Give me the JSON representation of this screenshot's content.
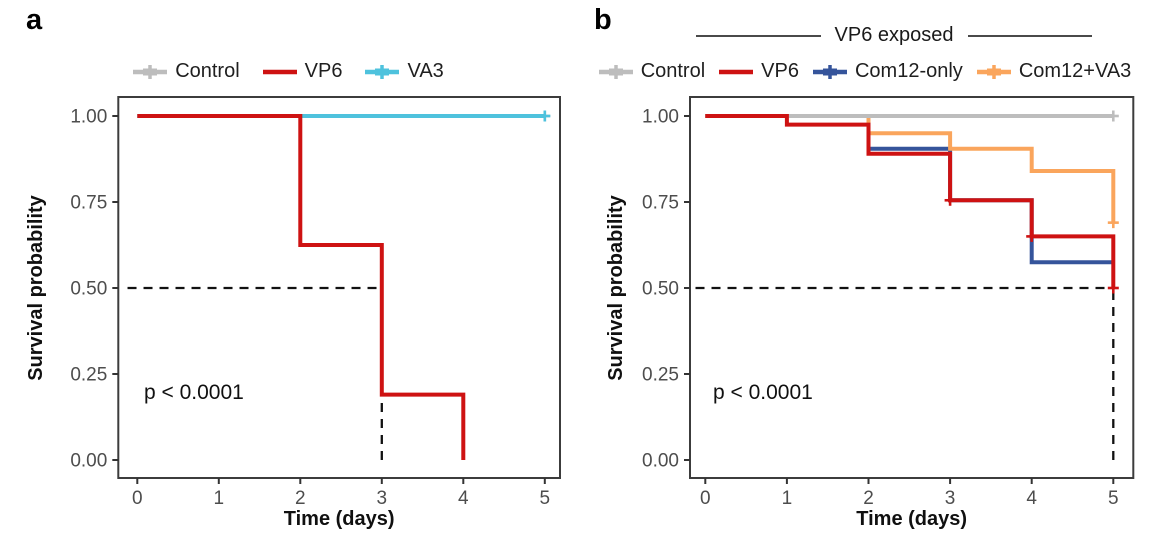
{
  "figure": {
    "background": "#ffffff",
    "panels": [
      {
        "label": "a",
        "header": null,
        "p_value": "p < 0.0001",
        "legend": [
          {
            "label": "Control",
            "color": "#BDBDBD",
            "censor_plus": true
          },
          {
            "label": "VP6",
            "color": "#CE1212",
            "censor_plus": false
          },
          {
            "label": "VA3",
            "color": "#4EC2DD",
            "censor_plus": true
          }
        ]
      },
      {
        "label": "b",
        "header": "VP6 exposed",
        "p_value": "p < 0.0001",
        "legend": [
          {
            "label": "Control",
            "color": "#BDBDBD",
            "censor_plus": true
          },
          {
            "label": "VP6",
            "color": "#CE1212",
            "censor_plus": false
          },
          {
            "label": "Com12-only",
            "color": "#35549B",
            "censor_plus": true
          },
          {
            "label": "Com12+VA3",
            "color": "#FAA55C",
            "censor_plus": true
          }
        ]
      }
    ]
  },
  "chart_data": [
    {
      "id": "a",
      "type": "line",
      "variant": "kaplan_meier_step",
      "title": "",
      "xlabel": "Time (days)",
      "ylabel": "Survival probability",
      "xlim": [
        0,
        5
      ],
      "ylim": [
        0,
        1
      ],
      "xticks": [
        "0",
        "1",
        "2",
        "3",
        "4",
        "5"
      ],
      "ytick_labels": [
        "0.00",
        "0.25",
        "0.50",
        "0.75",
        "1.00"
      ],
      "ytick_values": [
        0,
        0.25,
        0.5,
        0.75,
        1
      ],
      "grid": false,
      "legend_position": "top",
      "annotation": {
        "text": "p < 0.0001",
        "x": 0.35,
        "y": 0.2
      },
      "median_guides": {
        "horizontal": {
          "y": 0.5,
          "x_from": -0.12,
          "x_to": 3
        },
        "vertical": {
          "x": 3,
          "y_from": 0,
          "y_to": 0.5
        }
      },
      "series": [
        {
          "name": "Control",
          "color": "#BDBDBD",
          "steps": [
            [
              0,
              1
            ],
            [
              5,
              1
            ]
          ],
          "censors": [
            [
              5,
              1
            ]
          ]
        },
        {
          "name": "VA3",
          "color": "#4EC2DD",
          "steps": [
            [
              0,
              1
            ],
            [
              5,
              1
            ]
          ],
          "censors": [
            [
              5,
              1
            ]
          ]
        },
        {
          "name": "VP6",
          "color": "#CE1212",
          "steps": [
            [
              0,
              1
            ],
            [
              2,
              1
            ],
            [
              2,
              0.625
            ],
            [
              3,
              0.625
            ],
            [
              3,
              0.19
            ],
            [
              4,
              0.19
            ],
            [
              4,
              0
            ]
          ],
          "censors": []
        }
      ],
      "legend_order": [
        "Control",
        "VP6",
        "VA3"
      ]
    },
    {
      "id": "b",
      "type": "line",
      "variant": "kaplan_meier_step",
      "title": "VP6 exposed",
      "xlabel": "Time (days)",
      "ylabel": "Survival probability",
      "xlim": [
        0,
        5
      ],
      "ylim": [
        0,
        1
      ],
      "xticks": [
        "0",
        "1",
        "2",
        "3",
        "4",
        "5"
      ],
      "ytick_labels": [
        "0.00",
        "0.25",
        "0.50",
        "0.75",
        "1.00"
      ],
      "ytick_values": [
        0,
        0.25,
        0.5,
        0.75,
        1
      ],
      "grid": false,
      "legend_position": "top",
      "annotation": {
        "text": "p < 0.0001",
        "x": 0.3,
        "y": 0.2
      },
      "median_guides": {
        "horizontal": {
          "y": 0.5,
          "x_from": -0.12,
          "x_to": 5
        },
        "vertical": {
          "x": 5,
          "y_from": 0,
          "y_to": 0.5
        }
      },
      "series": [
        {
          "name": "Com12-only",
          "color": "#35549B",
          "steps": [
            [
              0,
              1
            ],
            [
              2,
              1
            ],
            [
              2,
              0.905
            ],
            [
              3,
              0.905
            ],
            [
              3,
              0.755
            ],
            [
              4,
              0.755
            ],
            [
              4,
              0.575
            ],
            [
              5,
              0.575
            ]
          ],
          "censors": []
        },
        {
          "name": "Com12+VA3",
          "color": "#FAA55C",
          "steps": [
            [
              0,
              1
            ],
            [
              2,
              1
            ],
            [
              2,
              0.95
            ],
            [
              3,
              0.95
            ],
            [
              3,
              0.905
            ],
            [
              4,
              0.905
            ],
            [
              4,
              0.84
            ],
            [
              5,
              0.84
            ],
            [
              5,
              0.69
            ]
          ],
          "censors": [
            [
              5,
              0.69
            ]
          ]
        },
        {
          "name": "Control",
          "color": "#BDBDBD",
          "steps": [
            [
              0,
              1
            ],
            [
              5,
              1
            ]
          ],
          "censors": [
            [
              5,
              1
            ]
          ]
        },
        {
          "name": "VP6",
          "color": "#CE1212",
          "steps": [
            [
              0,
              1
            ],
            [
              1,
              1
            ],
            [
              1,
              0.975
            ],
            [
              2,
              0.975
            ],
            [
              2,
              0.89
            ],
            [
              3,
              0.89
            ],
            [
              3,
              0.755
            ],
            [
              4,
              0.755
            ],
            [
              4,
              0.65
            ],
            [
              5,
              0.65
            ],
            [
              5,
              0.5
            ]
          ],
          "censors": [
            [
              3,
              0.755
            ],
            [
              4,
              0.65
            ],
            [
              5,
              0.5
            ]
          ]
        }
      ],
      "legend_order": [
        "Control",
        "VP6",
        "Com12-only",
        "Com12+VA3"
      ]
    }
  ]
}
